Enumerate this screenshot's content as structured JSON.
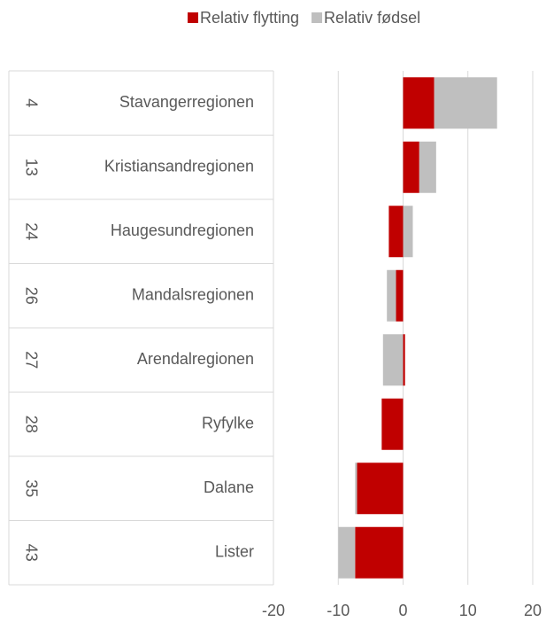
{
  "chart_data": {
    "type": "bar",
    "orientation": "horizontal",
    "stacked": true,
    "ranks": [
      "4",
      "13",
      "24",
      "26",
      "27",
      "28",
      "35",
      "43"
    ],
    "categories": [
      "Stavangerregionen",
      "Kristiansandregionen",
      "Haugesundregionen",
      "Mandalsregionen",
      "Arendalregionen",
      "Ryfylke",
      "Dalane",
      "Lister"
    ],
    "series": [
      {
        "name": "Relativ flytting",
        "color": "#c00000",
        "values": [
          4.8,
          2.5,
          -2.2,
          -1.1,
          0.3,
          -3.3,
          -7.1,
          -7.4
        ]
      },
      {
        "name": "Relativ fødsel",
        "color": "#bfbfbf",
        "values": [
          9.7,
          2.6,
          1.5,
          -1.4,
          -3.1,
          0,
          -0.3,
          -2.6
        ]
      }
    ],
    "xlim": [
      -20,
      20
    ],
    "xticks": [
      -20,
      -10,
      0,
      10,
      20
    ],
    "grid": true,
    "legend": "top"
  }
}
